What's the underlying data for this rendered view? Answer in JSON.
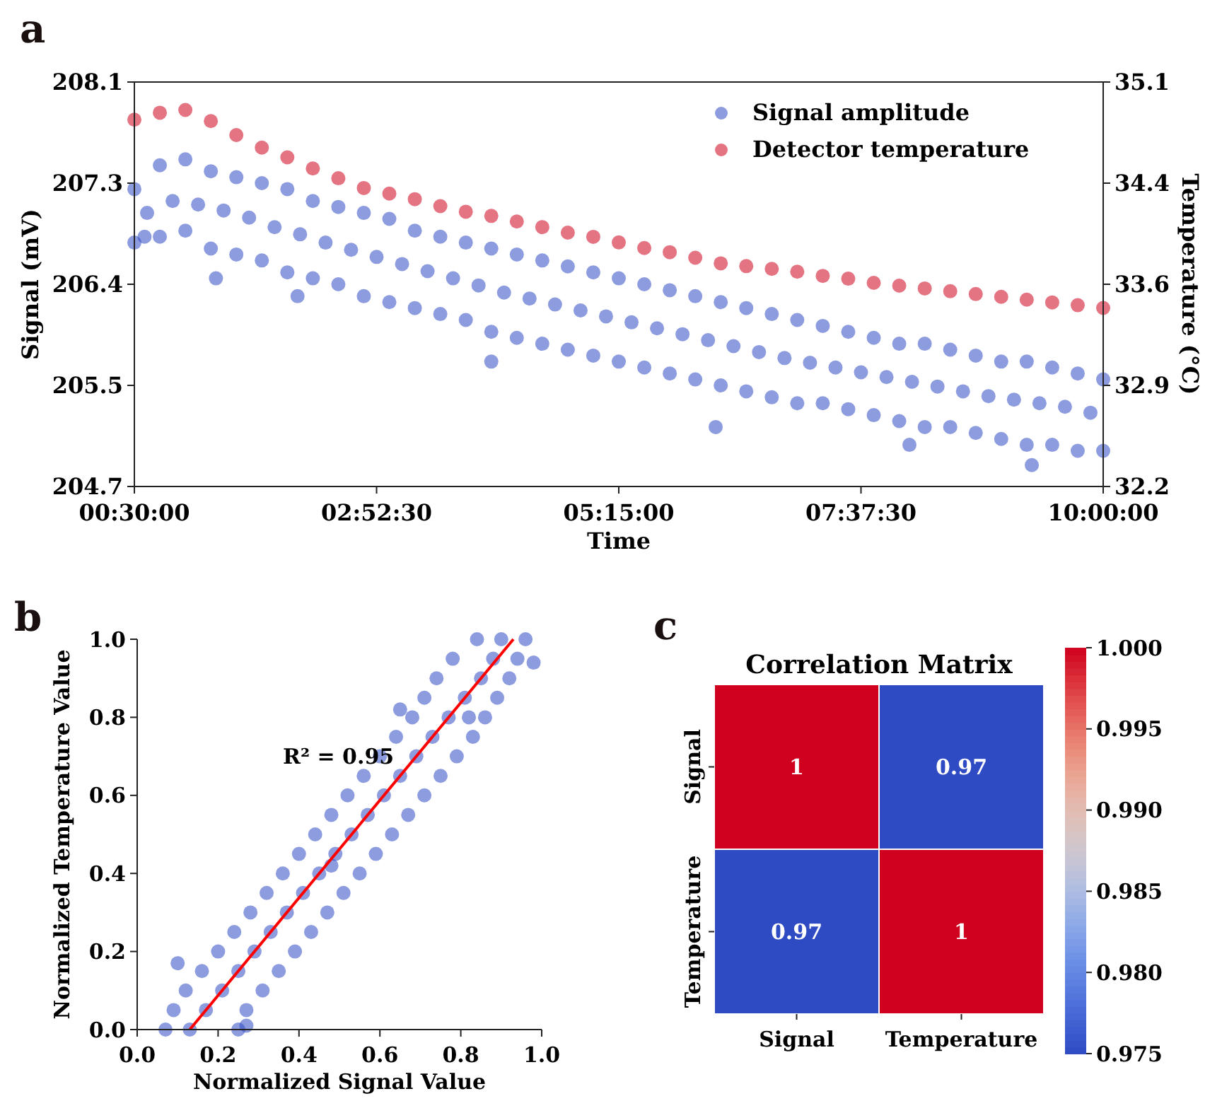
{
  "chart_data": [
    {
      "type": "scatter",
      "annotations": [
        "a"
      ],
      "xlabel": "Time",
      "ylabel": "Signal (mV)",
      "y2label": "Temperature (°C)",
      "legend": "top right",
      "marker": "circle",
      "grid": false,
      "xlim": [
        0.5,
        10
      ],
      "xticks": [
        {
          "value": 0.5,
          "label": "00:30:00"
        },
        {
          "value": 2.875,
          "label": "02:52:30"
        },
        {
          "value": 5.25,
          "label": "05:15:00"
        },
        {
          "value": 7.625,
          "label": "07:37:30"
        },
        {
          "value": 10,
          "label": "10:00:00"
        }
      ],
      "ylim": [
        204.7,
        208.1
      ],
      "yticks": [
        {
          "value": 204.7,
          "label": "204.7"
        },
        {
          "value": 205.55,
          "label": "205.5"
        },
        {
          "value": 206.4,
          "label": "206.4"
        },
        {
          "value": 207.25,
          "label": "207.3"
        },
        {
          "value": 208.1,
          "label": "208.1"
        }
      ],
      "y2lim": [
        32.2,
        35.1
      ],
      "y2ticks": [
        {
          "value": 32.2,
          "label": "32.2"
        },
        {
          "value": 32.925,
          "label": "32.9"
        },
        {
          "value": 33.65,
          "label": "33.6"
        },
        {
          "value": 34.375,
          "label": "34.4"
        },
        {
          "value": 35.1,
          "label": "35.1"
        }
      ],
      "series": [
        {
          "name": "Signal amplitude",
          "color": "#2f4bc4",
          "x": [
            0.5,
            0.5,
            0.625,
            0.75,
            0.75,
            0.875,
            1,
            1,
            1.125,
            1.25,
            1.25,
            1.375,
            1.5,
            1.5,
            1.625,
            1.75,
            1.75,
            1.875,
            2,
            2,
            2.125,
            2.25,
            2.25,
            2.375,
            2.5,
            2.5,
            2.625,
            2.75,
            2.75,
            2.875,
            3,
            3,
            3.125,
            3.25,
            3.25,
            3.375,
            3.5,
            3.5,
            3.625,
            3.75,
            3.75,
            3.875,
            4,
            4,
            4.125,
            4.25,
            4.25,
            4.375,
            4.5,
            4.5,
            4.625,
            4.75,
            4.75,
            4.875,
            5,
            5,
            5.125,
            5.25,
            5.25,
            5.375,
            5.5,
            5.5,
            5.625,
            5.75,
            5.75,
            5.875,
            6,
            6,
            6.125,
            6.25,
            6.25,
            6.375,
            6.5,
            6.5,
            6.625,
            6.75,
            6.75,
            6.875,
            7,
            7,
            7.125,
            7.25,
            7.25,
            7.375,
            7.5,
            7.5,
            7.625,
            7.75,
            7.75,
            7.875,
            8,
            8,
            8.125,
            8.25,
            8.25,
            8.375,
            8.5,
            8.5,
            8.625,
            8.75,
            8.75,
            8.875,
            9,
            9,
            9.125,
            9.25,
            9.25,
            9.375,
            9.5,
            9.5,
            9.625,
            9.75,
            9.75,
            9.875,
            10,
            10,
            0.6,
            1.3,
            2.1,
            4.0,
            6.2,
            8.1,
            9.3
          ],
          "values": [
            207.2,
            206.75,
            207.0,
            207.4,
            206.8,
            207.1,
            207.45,
            206.85,
            207.07,
            207.35,
            206.7,
            207.02,
            207.3,
            206.65,
            206.96,
            207.25,
            206.6,
            206.88,
            207.2,
            206.5,
            206.82,
            207.1,
            206.45,
            206.75,
            207.05,
            206.4,
            206.69,
            207.0,
            206.3,
            206.63,
            206.95,
            206.25,
            206.57,
            206.85,
            206.2,
            206.51,
            206.8,
            206.15,
            206.45,
            206.75,
            206.1,
            206.39,
            206.7,
            206.0,
            206.33,
            206.65,
            205.95,
            206.28,
            206.6,
            205.9,
            206.23,
            206.55,
            205.85,
            206.18,
            206.5,
            205.8,
            206.13,
            206.45,
            205.75,
            206.08,
            206.4,
            205.7,
            206.03,
            206.35,
            205.65,
            205.98,
            206.3,
            205.6,
            205.93,
            206.25,
            205.55,
            205.88,
            206.2,
            205.5,
            205.83,
            206.15,
            205.45,
            205.78,
            206.1,
            205.4,
            205.74,
            206.05,
            205.4,
            205.7,
            206.0,
            205.35,
            205.66,
            205.95,
            205.3,
            205.62,
            205.9,
            205.25,
            205.58,
            205.9,
            205.2,
            205.54,
            205.85,
            205.2,
            205.5,
            205.8,
            205.15,
            205.46,
            205.75,
            205.1,
            205.43,
            205.75,
            205.05,
            205.4,
            205.7,
            205.05,
            205.37,
            205.65,
            205.0,
            205.32,
            205.6,
            205.0,
            206.8,
            206.45,
            206.3,
            205.75,
            205.2,
            205.05,
            204.88
          ]
        },
        {
          "name": "Detector temperature",
          "color": "#d0011e",
          "axis": "y2",
          "x": [
            0.5,
            0.75,
            1,
            1.25,
            1.5,
            1.75,
            2,
            2.25,
            2.5,
            2.75,
            3,
            3.25,
            3.5,
            3.75,
            4,
            4.25,
            4.5,
            4.75,
            5,
            5.25,
            5.5,
            5.75,
            6,
            6.25,
            6.5,
            6.75,
            7,
            7.25,
            7.5,
            7.75,
            8,
            8.25,
            8.5,
            8.75,
            9,
            9.25,
            9.5,
            9.75,
            10
          ],
          "values": [
            34.83,
            34.88,
            34.9,
            34.82,
            34.72,
            34.63,
            34.56,
            34.48,
            34.41,
            34.34,
            34.3,
            34.26,
            34.21,
            34.17,
            34.14,
            34.1,
            34.06,
            34.02,
            33.99,
            33.95,
            33.91,
            33.88,
            33.84,
            33.8,
            33.78,
            33.76,
            33.74,
            33.71,
            33.69,
            33.66,
            33.64,
            33.62,
            33.6,
            33.58,
            33.56,
            33.54,
            33.52,
            33.5,
            33.48
          ]
        }
      ]
    },
    {
      "type": "scatter",
      "annotations": [
        "b",
        "R² = 0.95"
      ],
      "xlabel": "Normalized Signal Value",
      "ylabel": "Normalized Temperature Value",
      "grid": false,
      "xlim": [
        0,
        1
      ],
      "xticks": [
        {
          "value": 0,
          "label": "0.0"
        },
        0.2,
        0.4,
        0.6,
        0.8,
        {
          "value": 1,
          "label": "1.0"
        }
      ],
      "ylim": [
        0,
        1
      ],
      "yticks": [
        {
          "value": 0,
          "label": "0.0"
        },
        0.2,
        0.4,
        0.6,
        0.8,
        {
          "value": 1,
          "label": "1.0"
        }
      ],
      "series": [
        {
          "color": "#2f4bc4",
          "marker": "circle",
          "x": [
            0.07,
            0.13,
            0.25,
            0.09,
            0.17,
            0.27,
            0.12,
            0.21,
            0.31,
            0.16,
            0.25,
            0.35,
            0.2,
            0.29,
            0.39,
            0.24,
            0.33,
            0.43,
            0.28,
            0.37,
            0.47,
            0.32,
            0.41,
            0.51,
            0.36,
            0.45,
            0.55,
            0.4,
            0.49,
            0.59,
            0.44,
            0.53,
            0.63,
            0.48,
            0.57,
            0.67,
            0.52,
            0.61,
            0.71,
            0.56,
            0.65,
            0.75,
            0.6,
            0.69,
            0.79,
            0.64,
            0.73,
            0.83,
            0.68,
            0.77,
            0.86,
            0.71,
            0.81,
            0.89,
            0.74,
            0.85,
            0.92,
            0.78,
            0.88,
            0.94,
            0.84,
            0.9,
            0.96,
            0.1,
            0.27,
            0.48,
            0.65,
            0.82,
            0.98
          ],
          "values": [
            0,
            0,
            0,
            0.05,
            0.05,
            0.05,
            0.1,
            0.1,
            0.1,
            0.15,
            0.15,
            0.15,
            0.2,
            0.2,
            0.2,
            0.25,
            0.25,
            0.25,
            0.3,
            0.3,
            0.3,
            0.35,
            0.35,
            0.35,
            0.4,
            0.4,
            0.4,
            0.45,
            0.45,
            0.45,
            0.5,
            0.5,
            0.5,
            0.55,
            0.55,
            0.55,
            0.6,
            0.6,
            0.6,
            0.65,
            0.65,
            0.65,
            0.7,
            0.7,
            0.7,
            0.75,
            0.75,
            0.75,
            0.8,
            0.8,
            0.8,
            0.85,
            0.85,
            0.85,
            0.9,
            0.9,
            0.9,
            0.95,
            0.95,
            0.95,
            1,
            1,
            1,
            0.17,
            0.01,
            0.42,
            0.82,
            0.8,
            0.94
          ]
        },
        {
          "type": "line",
          "marker": "none",
          "color": "#ff0000",
          "x": [
            0.13,
            0.93
          ],
          "values": [
            0,
            1
          ]
        }
      ]
    },
    {
      "type": "heatmap",
      "annotations": [
        "c"
      ],
      "title": "Correlation Matrix",
      "categories": [
        "Signal",
        "Temperature"
      ],
      "y_categories": [
        "Signal",
        "Temperature"
      ],
      "cells": [
        [
          1,
          0.975
        ],
        [
          0.975,
          1
        ]
      ],
      "cell_labels": [
        [
          "1",
          "0.97"
        ],
        [
          "0.97",
          "1"
        ]
      ],
      "clim": [
        0.975,
        1
      ],
      "cticks": [
        {
          "value": 0.975,
          "label": "0.975"
        },
        {
          "value": 0.98,
          "label": "0.980"
        },
        {
          "value": 0.985,
          "label": "0.985"
        },
        {
          "value": 0.99,
          "label": "0.990"
        },
        {
          "value": 0.995,
          "label": "0.995"
        },
        {
          "value": 1,
          "label": "1.000"
        }
      ]
    }
  ]
}
